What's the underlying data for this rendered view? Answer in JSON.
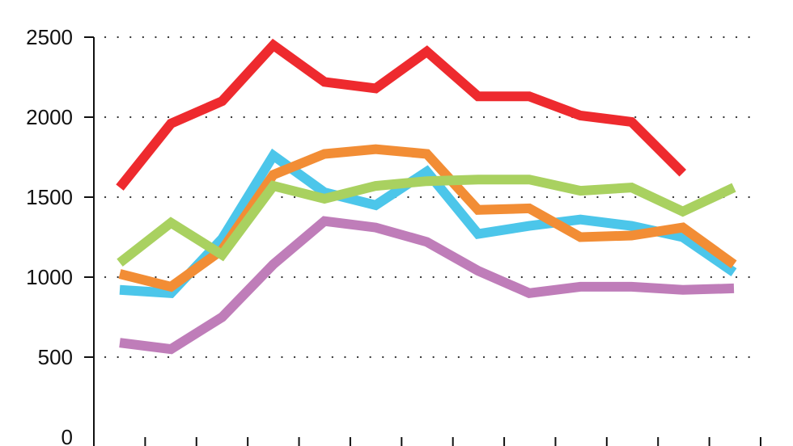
{
  "chart_data": {
    "type": "line",
    "title": "",
    "xlabel": "",
    "ylabel": "",
    "ylim": [
      0,
      2500
    ],
    "yticks": [
      "0",
      "500",
      "1000",
      "1500",
      "2000",
      "2500"
    ],
    "x": [
      1,
      2,
      3,
      4,
      5,
      6,
      7,
      8,
      9,
      10,
      11,
      12,
      13
    ],
    "grid": "horizontal-dotted",
    "legend": "none",
    "series": [
      {
        "color": "#ee2a2e",
        "values": [
          1560,
          1960,
          2100,
          2450,
          2220,
          2180,
          2410,
          2130,
          2130,
          2010,
          1970,
          1650,
          null
        ]
      },
      {
        "color": "#4cc6ea",
        "values": [
          920,
          900,
          1240,
          1760,
          1530,
          1450,
          1660,
          1270,
          1320,
          1360,
          1320,
          1250,
          1030
        ]
      },
      {
        "color": "#f28d35",
        "values": [
          1020,
          940,
          1170,
          1640,
          1770,
          1800,
          1770,
          1420,
          1430,
          1250,
          1260,
          1310,
          1080
        ]
      },
      {
        "color": "#a9d160",
        "values": [
          1090,
          1340,
          1140,
          1570,
          1490,
          1570,
          1600,
          1610,
          1610,
          1540,
          1560,
          1410,
          1560
        ]
      },
      {
        "color": "#bf7db9",
        "values": [
          590,
          550,
          750,
          1080,
          1350,
          1310,
          1220,
          1040,
          900,
          940,
          940,
          920,
          930
        ]
      }
    ]
  }
}
